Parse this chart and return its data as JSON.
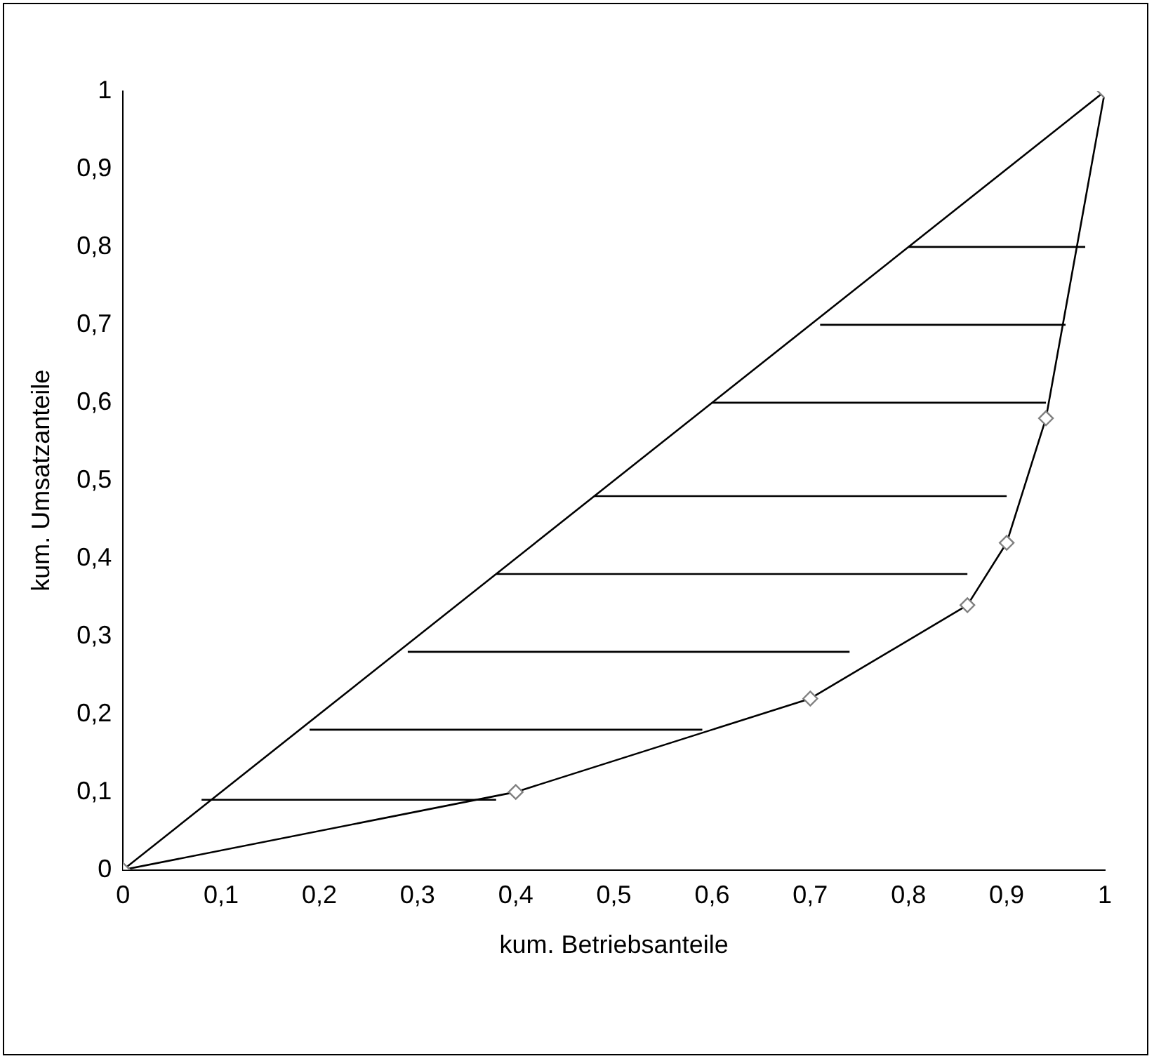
{
  "chart_data": {
    "type": "line",
    "xlabel": "kum. Betriebsanteile",
    "ylabel": "kum. Umsatzanteile",
    "xlim": [
      0,
      1
    ],
    "ylim": [
      0,
      1
    ],
    "xticks": [
      0,
      {
        "value": 0.1,
        "label": "0,1"
      },
      {
        "value": 0.2,
        "label": "0,2"
      },
      {
        "value": 0.3,
        "label": "0,3"
      },
      {
        "value": 0.4,
        "label": "0,4"
      },
      {
        "value": 0.5,
        "label": "0,5"
      },
      {
        "value": 0.6,
        "label": "0,6"
      },
      {
        "value": 0.7,
        "label": "0,7"
      },
      {
        "value": 0.8,
        "label": "0,8"
      },
      {
        "value": 0.9,
        "label": "0,9"
      },
      1
    ],
    "yticks": [
      0,
      {
        "value": 0.1,
        "label": "0,1"
      },
      {
        "value": 0.2,
        "label": "0,2"
      },
      {
        "value": 0.3,
        "label": "0,3"
      },
      {
        "value": 0.4,
        "label": "0,4"
      },
      {
        "value": 0.5,
        "label": "0,5"
      },
      {
        "value": 0.6,
        "label": "0,6"
      },
      {
        "value": 0.7,
        "label": "0,7"
      },
      {
        "value": 0.8,
        "label": "0,8"
      },
      {
        "value": 0.9,
        "label": "0,9"
      },
      1
    ],
    "grid": false,
    "legend": false,
    "series": [
      {
        "color": "#000000",
        "marker": "diamond",
        "x": [
          0,
          0.4,
          0.7,
          0.86,
          0.9,
          0.94,
          1
        ],
        "values": [
          0,
          0.1,
          0.22,
          0.34,
          0.42,
          0.58,
          1
        ]
      },
      {
        "color": "#000000",
        "marker": "none",
        "x": [
          0,
          1
        ],
        "values": [
          0,
          1
        ]
      },
      {
        "color": "#000000",
        "marker": "none",
        "x": [
          0.08,
          0.38
        ],
        "values": [
          0.09,
          0.09
        ]
      },
      {
        "color": "#000000",
        "marker": "none",
        "x": [
          0.19,
          0.59
        ],
        "values": [
          0.18,
          0.18
        ]
      },
      {
        "color": "#000000",
        "marker": "none",
        "x": [
          0.29,
          0.74
        ],
        "values": [
          0.28,
          0.28
        ]
      },
      {
        "color": "#000000",
        "marker": "none",
        "x": [
          0.38,
          0.86
        ],
        "values": [
          0.38,
          0.38
        ]
      },
      {
        "color": "#000000",
        "marker": "none",
        "x": [
          0.48,
          0.9
        ],
        "values": [
          0.48,
          0.48
        ]
      },
      {
        "color": "#000000",
        "marker": "none",
        "x": [
          0.6,
          0.94
        ],
        "values": [
          0.6,
          0.6
        ]
      },
      {
        "color": "#000000",
        "marker": "none",
        "x": [
          0.71,
          0.96
        ],
        "values": [
          0.7,
          0.7
        ]
      },
      {
        "color": "#000000",
        "marker": "none",
        "x": [
          0.8,
          0.98
        ],
        "values": [
          0.8,
          0.8
        ]
      }
    ]
  }
}
